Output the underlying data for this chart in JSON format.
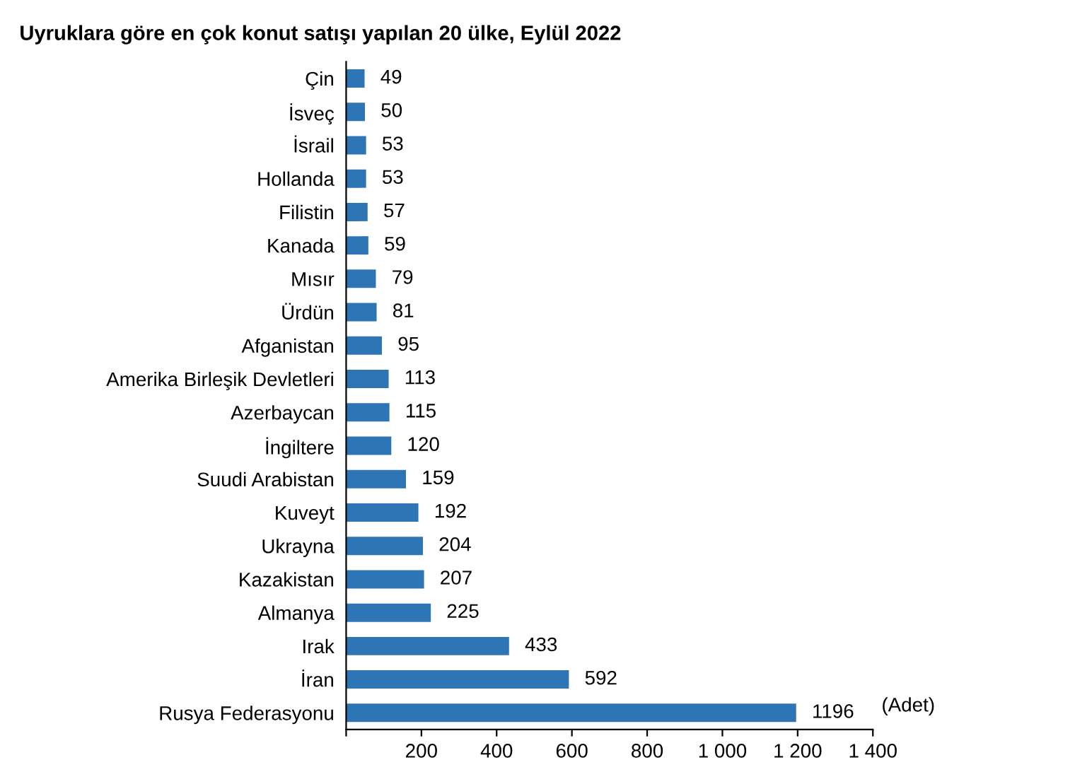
{
  "chart_data": {
    "type": "bar",
    "orientation": "horizontal",
    "title": "Uyruklara göre en çok konut satışı yapılan 20 ülke, Eylül 2022",
    "categories": [
      "Çin",
      "İsveç",
      "İsrail",
      "Hollanda",
      "Filistin",
      "Kanada",
      "Mısır",
      "Ürdün",
      "Afganistan",
      "Amerika Birleşik Devletleri",
      "Azerbaycan",
      "İngiltere",
      "Suudi Arabistan",
      "Kuveyt",
      "Ukrayna",
      "Kazakistan",
      "Almanya",
      "Irak",
      "İran",
      "Rusya Federasyonu"
    ],
    "values": [
      49,
      50,
      53,
      53,
      57,
      59,
      79,
      81,
      95,
      113,
      115,
      120,
      159,
      192,
      204,
      207,
      225,
      433,
      592,
      1196
    ],
    "color": "#2e75b6",
    "data_labels": true,
    "grid": false,
    "legend": false,
    "xlim": [
      0,
      1400
    ],
    "xticks": [
      {
        "value": 0,
        "label": null
      },
      200,
      400,
      600,
      800,
      {
        "value": 1000,
        "label": "1 000"
      },
      {
        "value": 1200,
        "label": "1 200"
      },
      {
        "value": 1400,
        "label": "1 400"
      }
    ],
    "annotations": [
      "(Adet)"
    ]
  }
}
